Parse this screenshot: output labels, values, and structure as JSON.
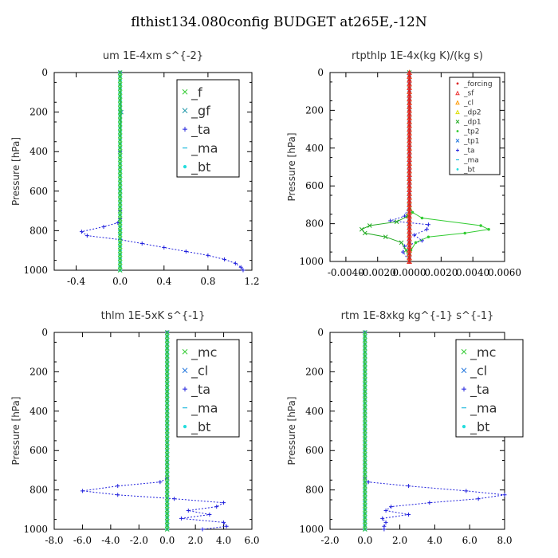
{
  "title": "flthist134.080config  BUDGET at265E,-12N",
  "chart_data": [
    {
      "type": "line",
      "title": "um  1E-4xm s^{-2}",
      "ylabel": "Pressure [hPa]",
      "xlim": [
        -0.6,
        1.2
      ],
      "xticks": [
        "-0.4",
        "0.0",
        "0.4",
        "0.8",
        "1.2"
      ],
      "xtick_values": [
        -0.4,
        0.0,
        0.4,
        0.8,
        1.2
      ],
      "ylim": [
        1000,
        0
      ],
      "yticks": [
        "0",
        "200",
        "400",
        "600",
        "800",
        "1000"
      ],
      "legend_position": "top-right",
      "series": [
        {
          "name": "_f",
          "color": "#33cc33",
          "marker": "x",
          "points": [
            [
              0.0,
              0
            ],
            [
              0.0,
              200
            ],
            [
              0.0,
              400
            ],
            [
              0.0,
              600
            ],
            [
              0.0,
              800
            ],
            [
              0.0,
              1000
            ]
          ]
        },
        {
          "name": "_gf",
          "color": "#2299aa",
          "marker": "x",
          "points": [
            [
              0.0,
              0
            ],
            [
              0.01,
              200
            ],
            [
              0.0,
              400
            ],
            [
              0.0,
              600
            ],
            [
              0.0,
              800
            ],
            [
              0.0,
              1000
            ]
          ]
        },
        {
          "name": "_ta",
          "color": "#2222dd",
          "marker": "+",
          "points": [
            [
              0.0,
              0
            ],
            [
              0.0,
              400
            ],
            [
              0.0,
              700
            ],
            [
              0.0,
              740
            ],
            [
              -0.02,
              760
            ],
            [
              -0.15,
              780
            ],
            [
              -0.35,
              805
            ],
            [
              -0.3,
              825
            ],
            [
              0.0,
              845
            ],
            [
              0.2,
              865
            ],
            [
              0.4,
              885
            ],
            [
              0.6,
              905
            ],
            [
              0.8,
              925
            ],
            [
              0.95,
              945
            ],
            [
              1.05,
              965
            ],
            [
              1.1,
              985
            ],
            [
              1.12,
              1000
            ]
          ]
        },
        {
          "name": "_ma",
          "color": "#22bbdd",
          "marker": "-",
          "points": [
            [
              0.0,
              0
            ],
            [
              0.0,
              1000
            ]
          ]
        },
        {
          "name": "_bt",
          "color": "#22dddd",
          "marker": "dot",
          "points": [
            [
              0.0,
              0
            ],
            [
              0.0,
              1000
            ]
          ]
        }
      ]
    },
    {
      "type": "line",
      "title": "rtpthlp  1E-4x(kg K)/(kg s)",
      "ylabel": "Pressure [hPa]",
      "xlim": [
        -0.005,
        0.006
      ],
      "xticks": [
        "-0.0040",
        "-0.0020",
        "0.0000",
        "0.0020",
        "0.0040",
        "0.0060"
      ],
      "xtick_values": [
        -0.004,
        -0.002,
        0.0,
        0.002,
        0.004,
        0.006
      ],
      "ylim": [
        1000,
        0
      ],
      "yticks": [
        "0",
        "200",
        "400",
        "600",
        "800",
        "1000"
      ],
      "legend_position": "top-right",
      "series": [
        {
          "name": "_forcing",
          "color": "#dd2222",
          "marker": "dot",
          "points": [
            [
              0.0,
              0
            ],
            [
              0.0,
              1000
            ]
          ]
        },
        {
          "name": "_sf",
          "color": "#ee3333",
          "marker": "tri",
          "points": [
            [
              0.0,
              0
            ],
            [
              0.0,
              1000
            ]
          ]
        },
        {
          "name": "_cl",
          "color": "#ff9900",
          "marker": "tri",
          "points": [
            [
              0.0,
              0
            ],
            [
              0.0,
              1000
            ]
          ]
        },
        {
          "name": "_dp2",
          "color": "#dddd00",
          "marker": "tri",
          "points": [
            [
              0.0,
              0
            ],
            [
              0.0,
              1000
            ]
          ]
        },
        {
          "name": "_dp1",
          "color": "#22aa22",
          "marker": "x",
          "points": [
            [
              0.0,
              0
            ],
            [
              0.0,
              700
            ],
            [
              -0.0001,
              760
            ],
            [
              -0.0008,
              790
            ],
            [
              -0.0025,
              810
            ],
            [
              -0.003,
              830
            ],
            [
              -0.0028,
              850
            ],
            [
              -0.0015,
              870
            ],
            [
              -0.0005,
              900
            ],
            [
              -0.0002,
              940
            ],
            [
              0.0,
              1000
            ]
          ]
        },
        {
          "name": "_tp2",
          "color": "#33cc33",
          "marker": "dot",
          "points": [
            [
              0.0,
              0
            ],
            [
              0.0,
              700
            ],
            [
              0.0002,
              740
            ],
            [
              0.0008,
              770
            ],
            [
              0.0045,
              810
            ],
            [
              0.005,
              830
            ],
            [
              0.0035,
              850
            ],
            [
              0.0012,
              870
            ],
            [
              0.0004,
              900
            ],
            [
              0.0001,
              940
            ],
            [
              0.0,
              1000
            ]
          ]
        },
        {
          "name": "_tp1",
          "color": "#2277dd",
          "marker": "x",
          "points": [
            [
              0.0,
              0
            ],
            [
              0.0,
              1000
            ]
          ]
        },
        {
          "name": "_ta",
          "color": "#2222dd",
          "marker": "+",
          "points": [
            [
              0.0,
              0
            ],
            [
              0.0,
              700
            ],
            [
              -0.0003,
              760
            ],
            [
              -0.0012,
              785
            ],
            [
              0.0012,
              805
            ],
            [
              0.0011,
              830
            ],
            [
              0.0003,
              860
            ],
            [
              0.0008,
              890
            ],
            [
              -0.0003,
              920
            ],
            [
              -0.0004,
              950
            ],
            [
              0.0,
              1000
            ]
          ]
        },
        {
          "name": "_ma",
          "color": "#22bbdd",
          "marker": "-",
          "points": [
            [
              0.0,
              0
            ],
            [
              0.0,
              1000
            ]
          ]
        },
        {
          "name": "_bt",
          "color": "#22dddd",
          "marker": "dot",
          "points": [
            [
              0.0,
              0
            ],
            [
              0.0,
              1000
            ]
          ]
        }
      ]
    },
    {
      "type": "line",
      "title": "thlm  1E-5xK s^{-1}",
      "ylabel": "Pressure [hPa]",
      "xlim": [
        -8.0,
        6.0
      ],
      "xticks": [
        "-8.0",
        "-6.0",
        "-4.0",
        "-2.0",
        "0.0",
        "2.0",
        "4.0",
        "6.0"
      ],
      "xtick_values": [
        -8.0,
        -6.0,
        -4.0,
        -2.0,
        0.0,
        2.0,
        4.0,
        6.0
      ],
      "ylim": [
        1000,
        0
      ],
      "yticks": [
        "0",
        "200",
        "400",
        "600",
        "800",
        "1000"
      ],
      "legend_position": "top-right",
      "series": [
        {
          "name": "_mc",
          "color": "#33cc33",
          "marker": "x",
          "points": [
            [
              0.0,
              0
            ],
            [
              0.0,
              200
            ],
            [
              0.0,
              400
            ],
            [
              0.0,
              600
            ],
            [
              0.0,
              800
            ],
            [
              0.0,
              1000
            ]
          ]
        },
        {
          "name": "_cl",
          "color": "#2277dd",
          "marker": "x",
          "points": [
            [
              0.0,
              0
            ],
            [
              0.0,
              1000
            ]
          ]
        },
        {
          "name": "_ta",
          "color": "#2222dd",
          "marker": "+",
          "points": [
            [
              0.0,
              0
            ],
            [
              0.0,
              740
            ],
            [
              -0.5,
              760
            ],
            [
              -3.5,
              780
            ],
            [
              -6.0,
              805
            ],
            [
              -3.5,
              825
            ],
            [
              0.5,
              845
            ],
            [
              4.0,
              865
            ],
            [
              3.5,
              885
            ],
            [
              1.5,
              905
            ],
            [
              3.0,
              925
            ],
            [
              1.0,
              945
            ],
            [
              4.0,
              965
            ],
            [
              4.2,
              985
            ],
            [
              2.5,
              1000
            ]
          ]
        },
        {
          "name": "_ma",
          "color": "#22bbdd",
          "marker": "-",
          "points": [
            [
              0.0,
              0
            ],
            [
              0.0,
              1000
            ]
          ]
        },
        {
          "name": "_bt",
          "color": "#22dddd",
          "marker": "dot",
          "points": [
            [
              0.0,
              0
            ],
            [
              0.0,
              1000
            ]
          ]
        }
      ]
    },
    {
      "type": "line",
      "title": "rtm  1E-8xkg kg^{-1} s^{-1}",
      "ylabel": "Pressure [hPa]",
      "xlim": [
        -2.0,
        8.0
      ],
      "xticks": [
        "-2.0",
        "0.0",
        "2.0",
        "4.0",
        "6.0",
        "8.0"
      ],
      "xtick_values": [
        -2.0,
        0.0,
        2.0,
        4.0,
        6.0,
        8.0
      ],
      "ylim": [
        1000,
        0
      ],
      "yticks": [
        "0",
        "200",
        "400",
        "600",
        "800",
        "1000"
      ],
      "legend_position": "top-right",
      "series": [
        {
          "name": "_mc",
          "color": "#33cc33",
          "marker": "x",
          "points": [
            [
              0.0,
              0
            ],
            [
              0.0,
              200
            ],
            [
              0.0,
              400
            ],
            [
              0.0,
              600
            ],
            [
              0.0,
              800
            ],
            [
              0.0,
              1000
            ]
          ]
        },
        {
          "name": "_cl",
          "color": "#2277dd",
          "marker": "x",
          "points": [
            [
              0.0,
              0
            ],
            [
              0.0,
              1000
            ]
          ]
        },
        {
          "name": "_ta",
          "color": "#2222dd",
          "marker": "+",
          "points": [
            [
              0.0,
              0
            ],
            [
              0.0,
              740
            ],
            [
              0.2,
              760
            ],
            [
              2.5,
              780
            ],
            [
              5.8,
              805
            ],
            [
              8.0,
              825
            ],
            [
              6.5,
              845
            ],
            [
              3.7,
              865
            ],
            [
              1.5,
              885
            ],
            [
              1.2,
              905
            ],
            [
              2.5,
              925
            ],
            [
              1.0,
              945
            ],
            [
              1.2,
              965
            ],
            [
              1.1,
              985
            ],
            [
              1.1,
              1000
            ]
          ]
        },
        {
          "name": "_ma",
          "color": "#22bbdd",
          "marker": "-",
          "points": [
            [
              0.0,
              0
            ],
            [
              0.0,
              1000
            ]
          ]
        },
        {
          "name": "_bt",
          "color": "#22dddd",
          "marker": "dot",
          "points": [
            [
              0.0,
              0
            ],
            [
              0.0,
              1000
            ]
          ]
        }
      ]
    }
  ]
}
